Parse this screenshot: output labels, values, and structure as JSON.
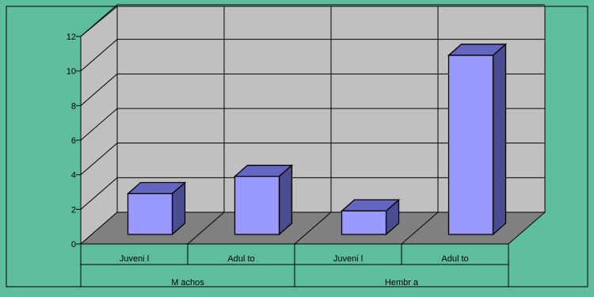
{
  "chart_data": {
    "type": "bar",
    "title": "",
    "xlabel": "",
    "ylabel": "",
    "ylim": [
      0,
      12
    ],
    "yticks": [
      0,
      2,
      4,
      6,
      8,
      10,
      12
    ],
    "grid": true,
    "legend": "none",
    "groups": [
      {
        "label": "M achos",
        "categories": [
          "Juveni l",
          "Adul to"
        ]
      },
      {
        "label": "Hembr a",
        "categories": [
          "Juveni l",
          "Adul to"
        ]
      }
    ],
    "categories": [
      "Juveni l",
      "Adul to",
      "Juveni l",
      "Adul to"
    ],
    "values": [
      3,
      4,
      2,
      11
    ],
    "colors": {
      "background": "#5ebd9c",
      "wall": "#c0c0c0",
      "floor": "#808080",
      "bar_front": "#9999ff",
      "bar_top": "#6565c2",
      "bar_side": "#4b4b8f",
      "outline": "#000000"
    }
  }
}
